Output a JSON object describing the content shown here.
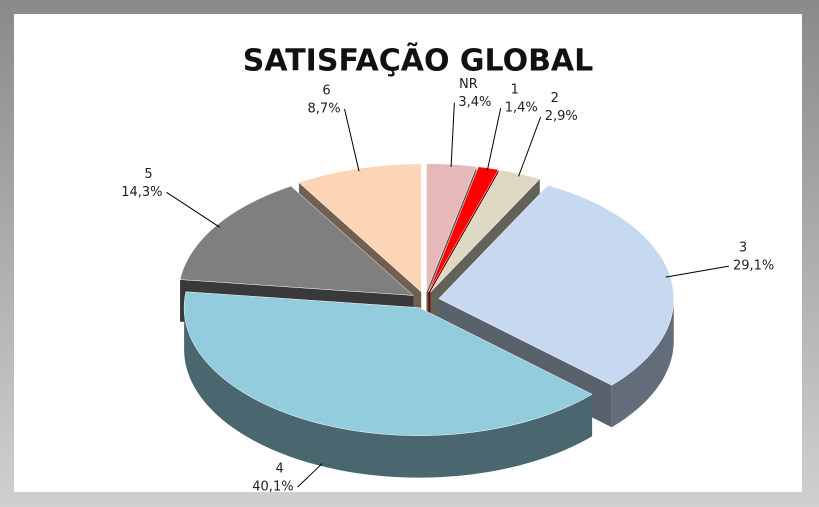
{
  "chart_data": {
    "type": "pie3d",
    "title": "SATISFAÇÃO GLOBAL",
    "categories": [
      "NR",
      "1",
      "2",
      "3",
      "4",
      "5",
      "6"
    ],
    "values": [
      3.4,
      1.4,
      2.9,
      29.1,
      40.1,
      14.3,
      8.7
    ],
    "value_labels": [
      "3,4%",
      "1,4%",
      "2,9%",
      "29,1%",
      "40,1%",
      "14,3%",
      "8,7%"
    ],
    "colors": [
      "#e6b9b8",
      "#ff0000",
      "#ddd9c3",
      "#c6d9f1",
      "#93cddd",
      "#7f7f7f",
      "#fbd5b5"
    ]
  }
}
